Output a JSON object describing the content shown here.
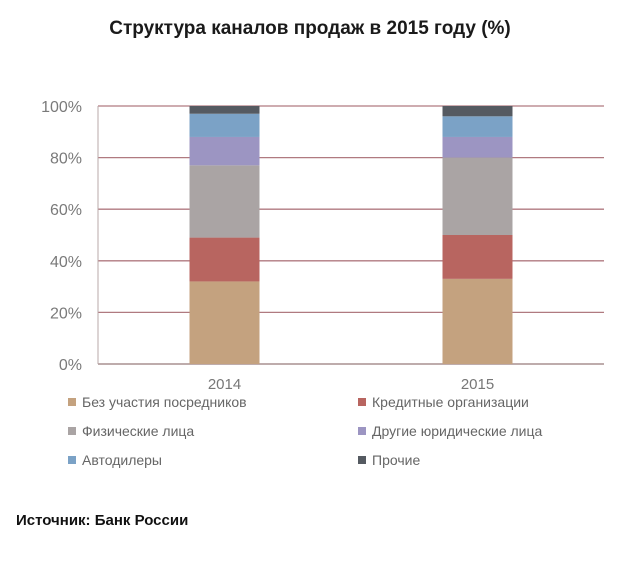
{
  "chart_data": {
    "type": "bar",
    "stacked": true,
    "title": "Структура каналов продаж в 2015 году (%)",
    "categories": [
      "2014",
      "2015"
    ],
    "ylim": [
      0,
      100
    ],
    "yticks": [
      "0%",
      "20%",
      "40%",
      "60%",
      "80%",
      "100%"
    ],
    "grid": true,
    "legend_position": "bottom",
    "series": [
      {
        "name": "Без участия посредников",
        "color": "#c4a27f",
        "values": [
          32,
          33
        ]
      },
      {
        "name": "Кредитные организации",
        "color": "#b86560",
        "values": [
          17,
          17
        ]
      },
      {
        "name": "Физические лица",
        "color": "#aaa4a4",
        "values": [
          28,
          30
        ]
      },
      {
        "name": "Другие юридические лица",
        "color": "#9c95c2",
        "values": [
          11,
          8
        ]
      },
      {
        "name": "Автодилеры",
        "color": "#7ba2c6",
        "values": [
          9,
          8
        ]
      },
      {
        "name": "Прочие",
        "color": "#555a61",
        "values": [
          3,
          4
        ]
      }
    ]
  },
  "source": "Источник: Банк России"
}
